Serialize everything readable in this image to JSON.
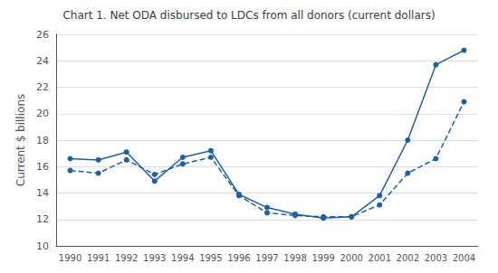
{
  "chart_data": {
    "type": "line",
    "title": "Chart 1. Net ODA disbursed to LDCs from all donors (current dollars)",
    "ylabel": "Current $ billions",
    "x": [
      1990,
      1991,
      1992,
      1993,
      1994,
      1995,
      1996,
      1997,
      1998,
      1999,
      2000,
      2001,
      2002,
      2003,
      2004
    ],
    "xlim": [
      1989.5,
      2004.5
    ],
    "xticks": [
      1990,
      1991,
      1992,
      1993,
      1994,
      1995,
      1996,
      1997,
      1998,
      1999,
      2000,
      2001,
      2002,
      2003,
      2004
    ],
    "ylim": [
      10,
      26
    ],
    "yticks": [
      10,
      12,
      14,
      16,
      18,
      20,
      22,
      24,
      26
    ],
    "grid": true,
    "series": [
      {
        "color": "#2060a0",
        "line_style": "solid",
        "marker": "circle",
        "values": [
          16.6,
          16.5,
          17.1,
          14.9,
          16.7,
          17.2,
          13.9,
          12.9,
          12.4,
          12.1,
          12.2,
          13.8,
          18.0,
          23.7,
          24.8
        ]
      },
      {
        "color": "#2060a0",
        "line_style": "dashed",
        "marker": "circle",
        "values": [
          15.7,
          15.5,
          16.5,
          15.4,
          16.2,
          16.7,
          13.8,
          12.5,
          12.3,
          12.2,
          12.2,
          13.1,
          15.5,
          16.6,
          20.9
        ]
      }
    ]
  }
}
